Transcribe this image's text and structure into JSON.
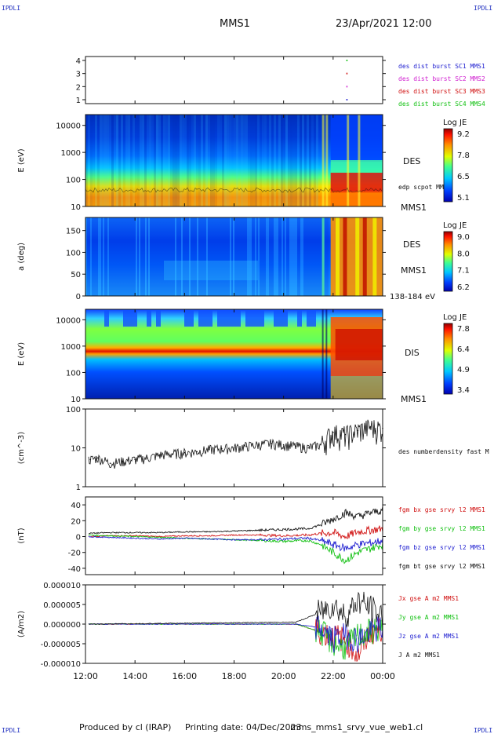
{
  "header": {
    "corner_label": "IPDLI",
    "mission": "MMS1",
    "datetime": "23/Apr/2021 12:00"
  },
  "footer": {
    "produced_by": "Produced by cl (IRAP)",
    "printing_date": "Printing date: 04/Dec/2023",
    "filename": "mms_mms1_srvy_vue_web1.cl"
  },
  "x_axis": {
    "ticks": [
      "12:00",
      "14:00",
      "16:00",
      "18:00",
      "20:00",
      "22:00",
      "00:00"
    ],
    "range_hours": [
      12,
      24
    ]
  },
  "panels": {
    "burst": {
      "ylim": [
        0.7,
        4.3
      ],
      "yticks": [
        "1",
        "2",
        "3",
        "4"
      ],
      "legend": [
        {
          "text": "des dist burst SC1 MMS1",
          "color": "#1f1fd0"
        },
        {
          "text": "des dist burst SC2 MMS2",
          "color": "#d020d0"
        },
        {
          "text": "des dist burst SC3 MMS3",
          "color": "#d01010"
        },
        {
          "text": "des dist burst SC4 MMS4",
          "color": "#10c010"
        }
      ]
    },
    "des_energy": {
      "ylabel": "E (eV)",
      "yticks": [
        "10000",
        "1000",
        "100",
        "10"
      ],
      "ylim": [
        10,
        25000
      ],
      "label1": "DES",
      "label2": "MMS1",
      "overlay_label": "edp scpot MMS1",
      "colorbar": {
        "title": "Log JE",
        "ticks": [
          "9.2",
          "7.8",
          "6.5",
          "5.1"
        ]
      }
    },
    "des_pitch": {
      "ylabel": "a (deg)",
      "yticks": [
        "150",
        "100",
        "50",
        "0"
      ],
      "ylim": [
        0,
        180
      ],
      "label1": "DES",
      "label2": "MMS1",
      "range_label": "138-184 eV",
      "colorbar": {
        "title": "Log JE",
        "ticks": [
          "9.0",
          "8.0",
          "7.1",
          "6.2"
        ]
      }
    },
    "dis_energy": {
      "ylabel": "E (eV)",
      "yticks": [
        "10000",
        "1000",
        "100",
        "10"
      ],
      "ylim": [
        10,
        25000
      ],
      "label1": "DIS",
      "label2": "MMS1",
      "colorbar": {
        "title": "Log JE",
        "ticks": [
          "7.8",
          "6.4",
          "4.9",
          "3.4"
        ]
      }
    },
    "density": {
      "ylabel": "(cm^-3)",
      "yticks": [
        "100",
        "10",
        "1"
      ],
      "ylim": [
        1,
        100
      ],
      "legend": [
        {
          "text": "des numberdensity fast M",
          "color": "#111111"
        }
      ]
    },
    "bfield": {
      "ylabel": "(nT)",
      "yticks": [
        "40",
        "20",
        "0",
        "-20",
        "-40"
      ],
      "ylim": [
        -48,
        50
      ],
      "legend": [
        {
          "text": "fgm bx gse srvy l2 MMS1",
          "color": "#d01010"
        },
        {
          "text": "fgm by gse srvy l2 MMS1",
          "color": "#10c010"
        },
        {
          "text": "fgm bz gse srvy l2 MMS1",
          "color": "#1f1fd0"
        },
        {
          "text": "fgm bt gse srvy l2 MMS1",
          "color": "#111111"
        }
      ]
    },
    "current": {
      "ylabel": "(A/m2)",
      "yticks": [
        "0.000010",
        "0.000005",
        "0.000000",
        "-0.000005",
        "-0.000010"
      ],
      "ylim": [
        -1e-05,
        1e-05
      ],
      "legend": [
        {
          "text": "Jx gse A m2 MMS1",
          "color": "#d01010"
        },
        {
          "text": "Jy gse A m2 MMS1",
          "color": "#10c010"
        },
        {
          "text": "Jz gse A m2 MMS1",
          "color": "#1f1fd0"
        },
        {
          "text": "J A m2 MMS1",
          "color": "#111111"
        }
      ]
    }
  },
  "chart_data": {
    "type": "line",
    "x_unit": "hour of day",
    "burst_marks": [
      {
        "series": "MMS4",
        "x": 22.55,
        "y": 4
      },
      {
        "series": "MMS3",
        "x": 22.55,
        "y": 3
      },
      {
        "series": "MMS2",
        "x": 22.55,
        "y": 2
      },
      {
        "series": "MMS1",
        "x": 22.55,
        "y": 1
      }
    ],
    "density": {
      "x": [
        12.2,
        12.5,
        13.0,
        13.5,
        14.0,
        14.5,
        15.0,
        15.5,
        16.0,
        16.5,
        17.0,
        17.5,
        18.0,
        18.5,
        19.0,
        19.5,
        20.0,
        20.5,
        21.0,
        21.5,
        22.0,
        22.5,
        23.0,
        23.5,
        24.0
      ],
      "y": [
        5,
        5.5,
        4,
        4.5,
        5,
        5.5,
        6.5,
        7,
        7.5,
        8,
        9,
        9.5,
        10,
        11,
        12,
        13,
        12,
        11,
        10,
        12,
        25,
        22,
        28,
        35,
        32
      ]
    },
    "bfield": {
      "x": [
        12.0,
        13.0,
        14.0,
        15.0,
        16.0,
        17.0,
        18.0,
        19.0,
        20.0,
        21.0,
        21.5,
        22.0,
        22.5,
        23.0,
        23.5,
        24.0
      ],
      "series": [
        {
          "name": "fgm bx gse srvy l2 MMS1",
          "color": "#d01010",
          "values": [
            0,
            1,
            1,
            0,
            1,
            1,
            2,
            2,
            1,
            2,
            4,
            5,
            0,
            6,
            8,
            10
          ]
        },
        {
          "name": "fgm by gse srvy l2 MMS1",
          "color": "#10c010",
          "values": [
            2,
            1,
            0,
            -1,
            -2,
            -3,
            -4,
            -5,
            -6,
            -5,
            -10,
            -20,
            -30,
            -20,
            -15,
            -10
          ]
        },
        {
          "name": "fgm bz gse srvy l2 MMS1",
          "color": "#1f1fd0",
          "values": [
            0,
            -1,
            -2,
            -3,
            -2,
            -3,
            -4,
            -4,
            -3,
            -2,
            -5,
            -10,
            -15,
            -10,
            -8,
            -5
          ]
        },
        {
          "name": "fgm bt gse srvy l2 MMS1",
          "color": "#111111",
          "values": [
            4,
            5,
            5,
            5,
            6,
            6,
            7,
            8,
            9,
            10,
            15,
            22,
            30,
            25,
            30,
            33
          ]
        }
      ]
    },
    "current": {
      "x": [
        12,
        20.5,
        21.5,
        22.0,
        22.5,
        23.0,
        23.5,
        24.0
      ],
      "series": [
        {
          "name": "Jx gse A m2 MMS1",
          "color": "#d01010",
          "values": [
            0,
            0,
            -2e-06,
            -3e-06,
            -4e-06,
            -8e-06,
            -2e-06,
            -1e-06
          ]
        },
        {
          "name": "Jy gse A m2 MMS1",
          "color": "#10c010",
          "values": [
            0,
            0,
            -2e-06,
            -5e-06,
            -6e-06,
            -3e-06,
            -2e-06,
            -1e-06
          ]
        },
        {
          "name": "Jz gse A m2 MMS1",
          "color": "#1f1fd0",
          "values": [
            0,
            0,
            -1e-06,
            -4e-06,
            -3e-06,
            -4e-06,
            -2e-06,
            -1e-06
          ]
        },
        {
          "name": "J A m2 MMS1",
          "color": "#111111",
          "values": [
            0,
            5e-07,
            3e-06,
            5e-06,
            2e-06,
            6e-06,
            4e-06,
            2e-06
          ]
        }
      ]
    }
  }
}
